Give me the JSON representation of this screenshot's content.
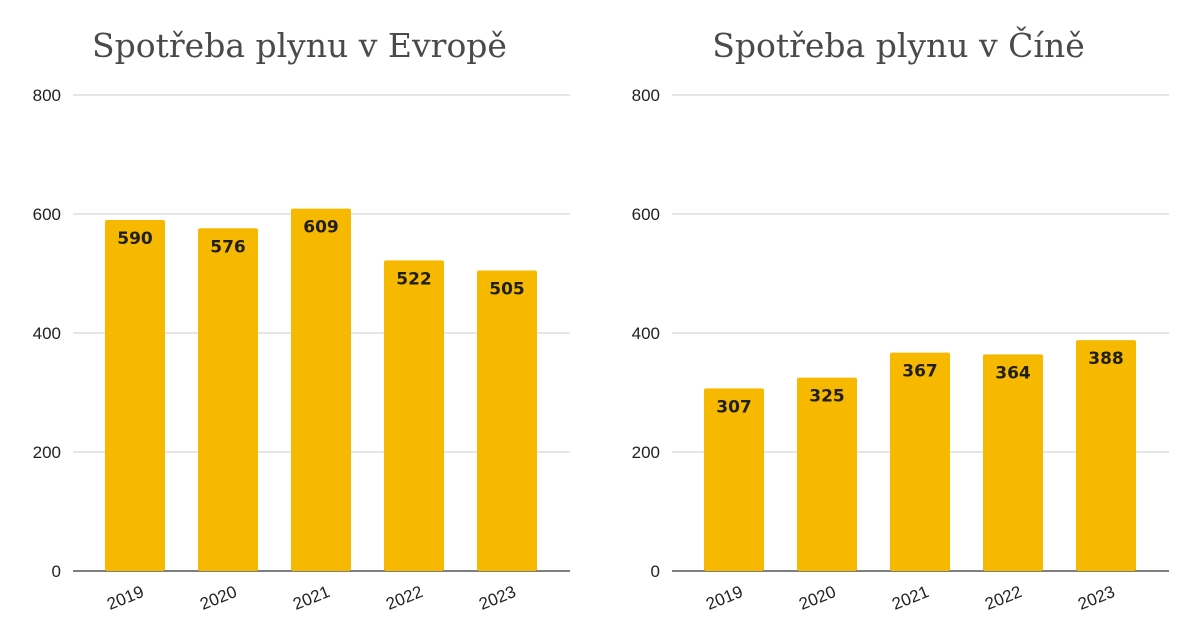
{
  "chart_data": [
    {
      "type": "bar",
      "title": "Spotřeba plynu v Evropě",
      "categories": [
        "2019",
        "2020",
        "2021",
        "2022",
        "2023"
      ],
      "values": [
        590,
        576,
        609,
        522,
        505
      ],
      "data_labels": [
        "590",
        "576",
        "609",
        "522",
        "505"
      ],
      "ylim": [
        0,
        800
      ],
      "yticks": [
        "0",
        "200",
        "400",
        "600",
        "800"
      ],
      "ytick_values": [
        0,
        200,
        400,
        600,
        800
      ],
      "bar_color": "#F6B900",
      "grid": true,
      "xlabel": "",
      "ylabel": ""
    },
    {
      "type": "bar",
      "title": "Spotřeba plynu v Číně",
      "categories": [
        "2019",
        "2020",
        "2021",
        "2022",
        "2023"
      ],
      "values": [
        307,
        325,
        367,
        364,
        388
      ],
      "data_labels": [
        "307",
        "325",
        "367",
        "364",
        "388"
      ],
      "ylim": [
        0,
        800
      ],
      "yticks": [
        "0",
        "200",
        "400",
        "600",
        "800"
      ],
      "ytick_values": [
        0,
        200,
        400,
        600,
        800
      ],
      "bar_color": "#F6B900",
      "grid": true,
      "xlabel": "",
      "ylabel": ""
    }
  ]
}
